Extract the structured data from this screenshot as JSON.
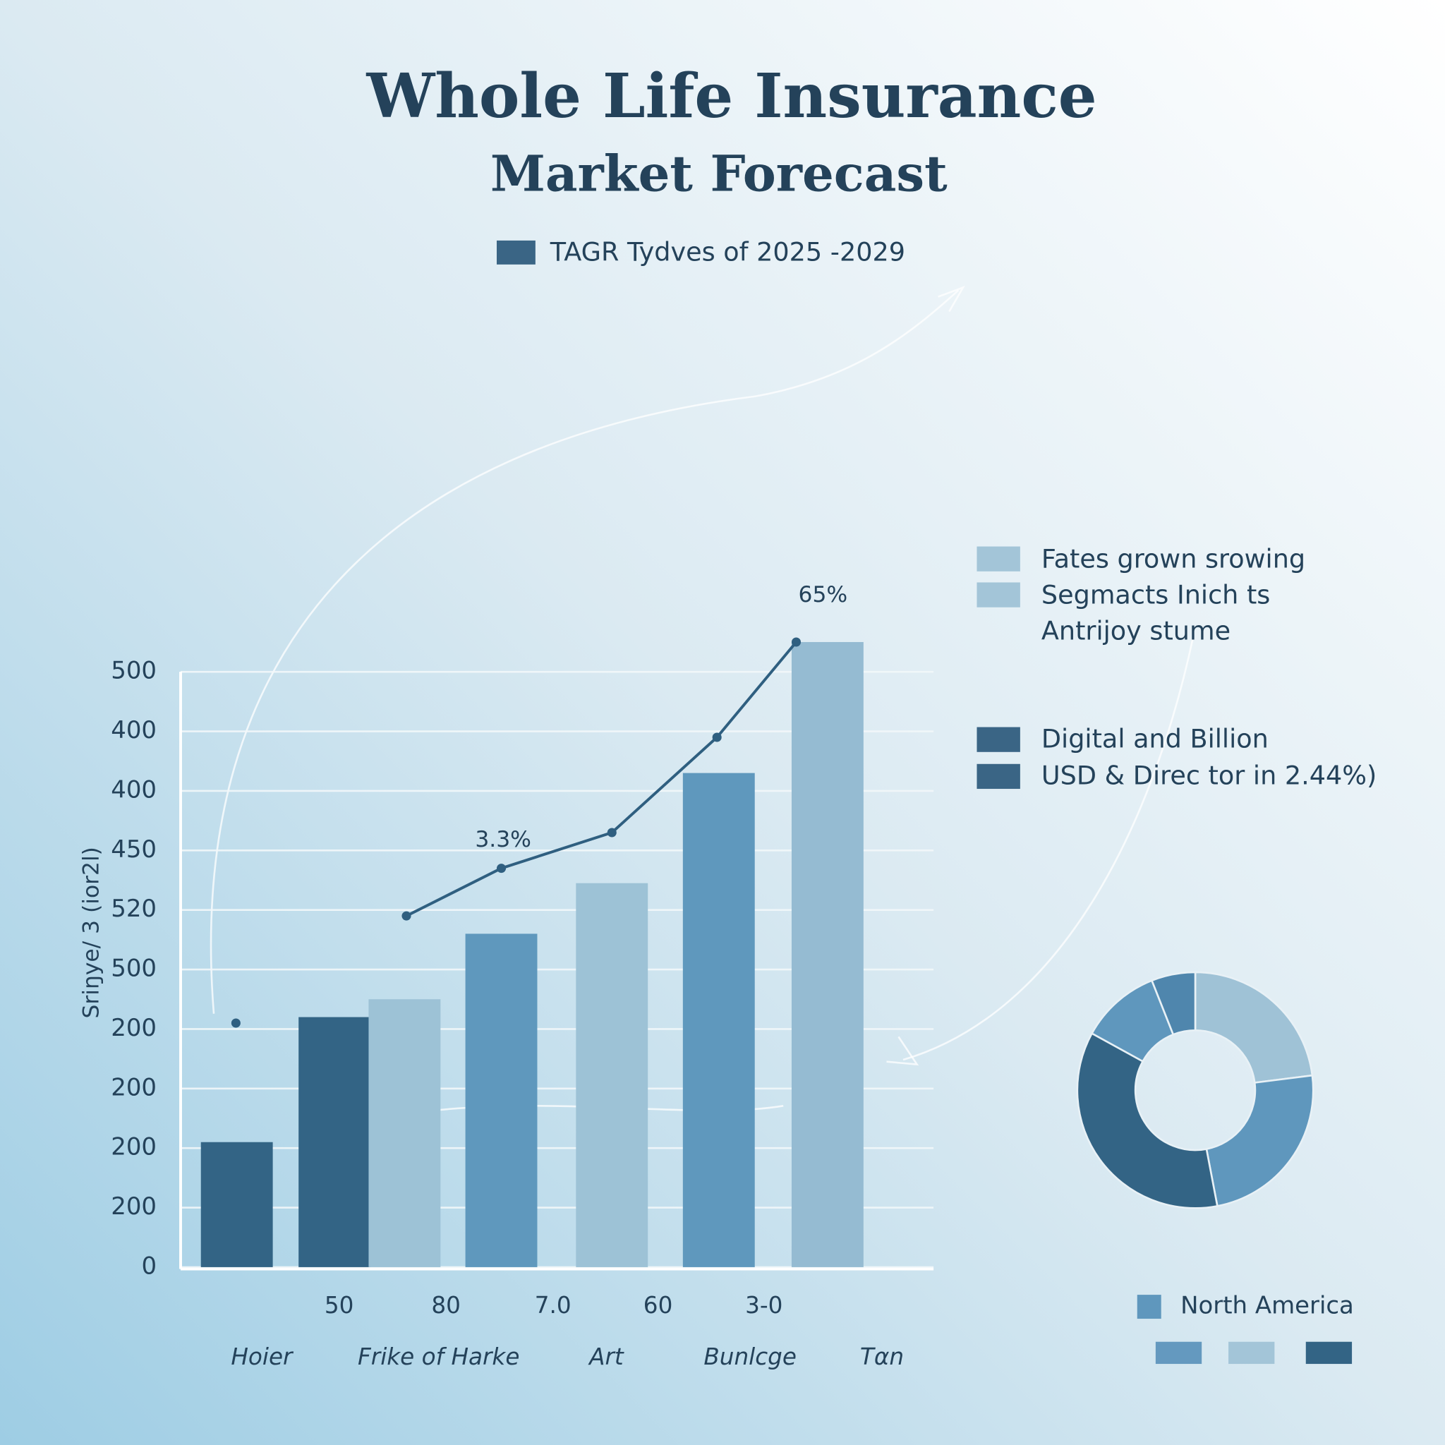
{
  "chart_data": {
    "type": "bar",
    "title": "Whole Life Insurance",
    "subtitle": "Market Forecast",
    "y_label": "Sriŋye/ 3 (ior2l)",
    "ylim": [
      0,
      10
    ],
    "yticks": [
      0,
      {
        "value": 1,
        "label": "200"
      },
      {
        "value": 2,
        "label": "200"
      },
      {
        "value": 3,
        "label": "200"
      },
      {
        "value": 4,
        "label": "200"
      },
      {
        "value": 5,
        "label": "500"
      },
      {
        "value": 6,
        "label": "520"
      },
      {
        "value": 7,
        "label": "450"
      },
      {
        "value": 8,
        "label": "400"
      },
      {
        "value": 9,
        "label": "400"
      },
      {
        "value": 10,
        "label": "500"
      }
    ],
    "grid": true,
    "categories": [
      null,
      null,
      null,
      null,
      null,
      null,
      null
    ],
    "x_tick_labels": [
      "50",
      "80",
      "7.0",
      "60",
      "3-0"
    ],
    "x_names": [
      "Hoier",
      "Frike of Harke",
      "Art",
      "Bunlcge",
      "Tαn"
    ],
    "series": [
      {
        "name": "TAGR Tydves of 2025 -2029",
        "type": "bar",
        "color": "#3a6585",
        "colors": [
          "#336485",
          "#336485",
          "#9dc2d6",
          "#5f98bd",
          "#9dc2d6",
          "#5f98bd",
          "#95bbd2"
        ],
        "values": [
          2.1,
          4.2,
          4.5,
          5.6,
          6.45,
          8.3,
          10.5
        ]
      },
      {
        "type": "line",
        "color": "#2f5f80",
        "values": [
          4.1,
          null,
          5.9,
          6.7,
          7.3,
          8.9,
          10.5
        ]
      }
    ],
    "annotations": [
      "3.3%",
      "65%"
    ],
    "side_legend": {
      "light_items": [
        "Fates grown srowing",
        "Segmacts Inich ts"
      ],
      "light_color": "#a3c5d8",
      "note": "Antrijoy stume",
      "dark_items": [
        "Digital and Billion",
        "USD & Direc tor in 2.44%)"
      ],
      "dark_color": "#3a6585"
    },
    "donut": {
      "values": [
        23,
        24,
        36,
        11,
        6
      ],
      "colors": [
        "#9fc2d6",
        "#5f97bd",
        "#336485",
        "#5f97bd",
        "#4f86ad"
      ]
    },
    "region_legend": {
      "label": "North America",
      "color": "#5f97bd",
      "swatches": [
        "#6499bf",
        "#a3c5d8",
        "#336485"
      ]
    }
  }
}
